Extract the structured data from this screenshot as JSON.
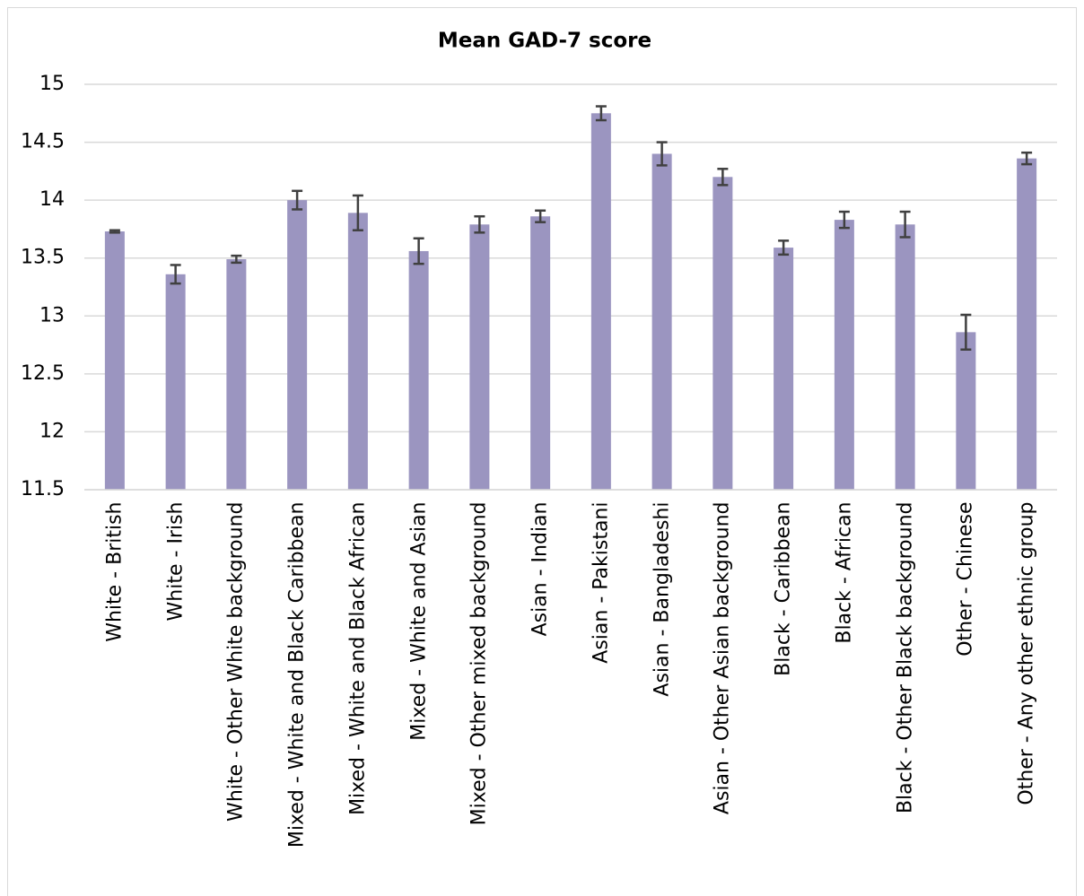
{
  "chart_data": {
    "type": "bar",
    "title": "Mean GAD-7 score",
    "categories": [
      "White - British",
      "White - Irish",
      "White - Other White background",
      "Mixed - White and Black Caribbean",
      "Mixed - White and Black African",
      "Mixed - White and Asian",
      "Mixed - Other mixed background",
      "Asian - Indian",
      "Asian - Pakistani",
      "Asian - Bangladeshi",
      "Asian - Other Asian background",
      "Black - Caribbean",
      "Black - African",
      "Black - Other Black background",
      "Other - Chinese",
      "Other - Any other ethnic group"
    ],
    "values": [
      13.73,
      13.36,
      13.49,
      14.0,
      13.89,
      13.56,
      13.79,
      13.86,
      14.75,
      14.4,
      14.2,
      13.59,
      13.83,
      13.79,
      12.86,
      14.36
    ],
    "errors": [
      0.01,
      0.08,
      0.03,
      0.08,
      0.15,
      0.11,
      0.07,
      0.05,
      0.06,
      0.1,
      0.07,
      0.06,
      0.07,
      0.11,
      0.15,
      0.05
    ],
    "color": "#9b95c0",
    "error_color": "#404040",
    "ylim": [
      11.5,
      15
    ],
    "yticks": [
      11.5,
      12,
      12.5,
      13,
      13.5,
      14,
      14.5,
      15
    ],
    "grid": true
  }
}
